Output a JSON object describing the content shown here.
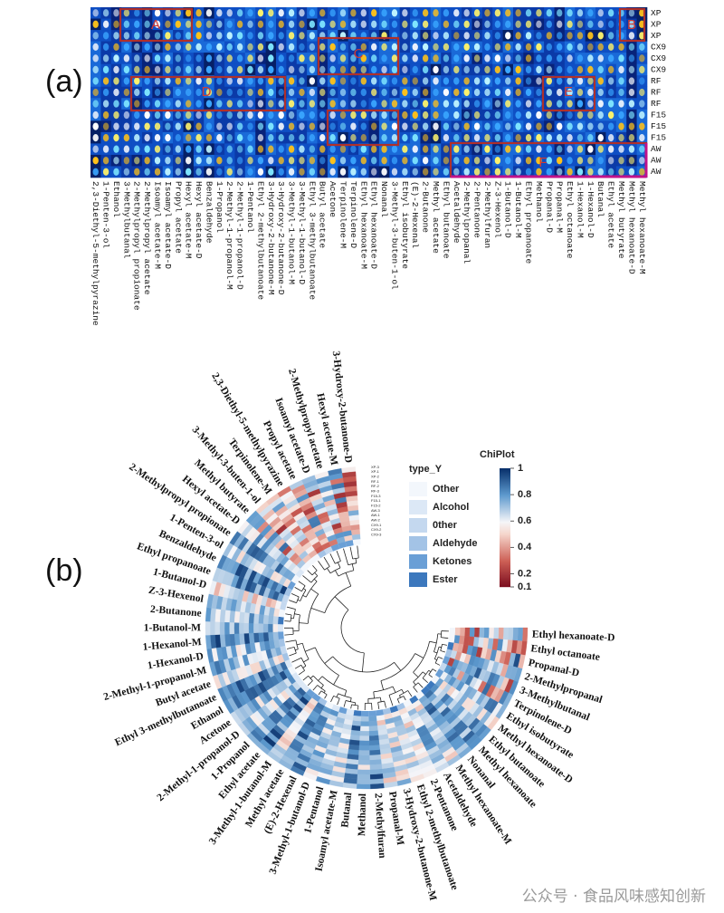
{
  "panel_a": {
    "label": "(a)",
    "rows": [
      "XP",
      "XP",
      "XP",
      "CX9",
      "CX9",
      "CX9",
      "RF",
      "RF",
      "RF",
      "F15",
      "F15",
      "F15",
      "AW",
      "AW",
      "AW"
    ],
    "columns": [
      "2,3-Diethyl-5-methylpyrazine",
      "1-Penten-3-ol",
      "Ethanol",
      "3-Methylbutanal",
      "2-Methylpropyl propionate",
      "2-Methylpropyl acetate",
      "Isoamyl acetate-M",
      "Isoamyl acetate-D",
      "Propyl acetate",
      "Hexyl acetate-M",
      "Hexyl acetate-D",
      "Benzaldehyde",
      "1-Propanol",
      "2-Methyl-1-propanol-M",
      "2-Methyl-1-propanol-D",
      "1-Pentanol",
      "Ethyl 2-methylbutanoate",
      "3-Hydroxy-2-butanone-M",
      "3-Hydroxy-2-butanone-D",
      "3-Methyl-1-butanol-M",
      "3-Methyl-1-butanol-D",
      "Ethyl 3-methylbutanoate",
      "Butyl acetate",
      "Acetone",
      "Terpinolene-M",
      "Terpinolene-D",
      "Ethyl hexanoate-M",
      "Ethyl hexanoate-D",
      "Nonanal",
      "3-Methyl-3-buten-1-ol",
      "Ethyl isobutyrate",
      "(E)-2-Hexenal",
      "2-Butanone",
      "Methyl acetate",
      "Ethyl butanoate",
      "Acetaldehyde",
      "2-Methylpropanal",
      "2-Pentanone",
      "2-Methylfuran",
      "Z-3-Hexenol",
      "1-Butanol-D",
      "1-Butanol-M",
      "Ethyl propanoate",
      "Methanol",
      "Propanal-D",
      "Propanal-M",
      "Ethyl octanoate",
      "1-Hexanol-M",
      "1-Hexanol-D",
      "Butanal",
      "Ethyl acetate",
      "Methyl butyrate",
      "Methyl hexanoate-D",
      "Methyl hexanoate-M"
    ],
    "boxes": [
      "A",
      "B",
      "C",
      "D",
      "E",
      "F"
    ]
  },
  "panel_b": {
    "label": "(b)",
    "compounds": [
      "Ethyl hexanoate-D",
      "Ethyl octanoate",
      "Propanal-D",
      "2-Methylpropanal",
      "3-Methylbutanal",
      "Terpinolene-D",
      "Ethyl isobutyrate",
      "Methyl hexanoate-D",
      "Ethyl butanoate",
      "Methyl hexanoate",
      "Nonanal",
      "Methyl hexanoate-M",
      "Acetaldehyde",
      "2-Pentanone",
      "Ethyl 2-methylbutanoate",
      "3-Hydroxy-2-butanone-M",
      "Propanal-M",
      "2-Methylfuran",
      "Methanol",
      "Butanal",
      "Isoamyl acetate-M",
      "1-Pentanol",
      "3-Methyl-1-butanol-D",
      "(E)-2-Hexenal",
      "Methyl acetate",
      "3-Methyl-1-butanol-M",
      "Ethyl acetate",
      "1-Propanol",
      "2-Methyl-1-propanol-D",
      "Acetone",
      "Ethanol",
      "Ethyl 3-methylbutanoate",
      "Butyl acetate",
      "2-Methyl-1-propanol-M",
      "1-Hexanol-D",
      "1-Hexanol-M",
      "1-Butanol-M",
      "2-Butanone",
      "Z-3-Hexenol",
      "1-Butanol-D",
      "Ethyl propanoate",
      "Benzaldehyde",
      "1-Penten-3-ol",
      "2-Methylpropyl propionate",
      "Hexyl acetate-D",
      "Methyl butyrate",
      "3-Methyl-3-buten-1-ol",
      "Terpinolene-M",
      "2,3-Diethyl-5-methylpyrazine",
      "Propyl acetate",
      "Isoamyl acetate-D",
      "2-Methylpropyl acetate",
      "Hexyl acetate-M",
      "3-Hydroxy-2-butanone-D"
    ],
    "ring_rows": [
      "XP-3",
      "XP-1",
      "XP-2",
      "RF-1",
      "RF-2",
      "RF-3",
      "F15-3",
      "F15-1",
      "F15-2",
      "AW-3",
      "AW-1",
      "AW-2",
      "CX9-1",
      "CX9-2",
      "CX9-3"
    ],
    "legend": {
      "title": "type_Y",
      "items": [
        {
          "name": "Other",
          "color": "#f3f7fc"
        },
        {
          "name": "Alcohol",
          "color": "#dce8f6"
        },
        {
          "name": "0ther",
          "color": "#c4d8ef"
        },
        {
          "name": "Aldehyde",
          "color": "#a3c3e6"
        },
        {
          "name": "Ketones",
          "color": "#6a9fd6"
        },
        {
          "name": "Ester",
          "color": "#3c78bd"
        }
      ]
    },
    "colorbar": {
      "title": "ChiPlot",
      "ticks": [
        1,
        0.8,
        0.6,
        0.4,
        0.2,
        0.1
      ]
    }
  },
  "watermark": "公众号 · 食品风味感知创新"
}
